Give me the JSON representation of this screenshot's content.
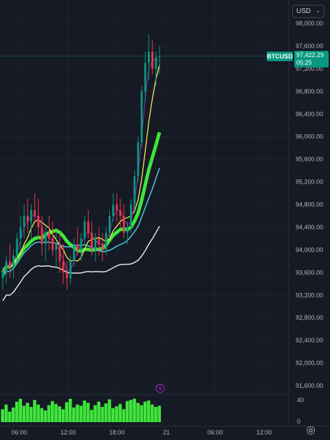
{
  "currency_select": {
    "value": "USD"
  },
  "symbol_tag": {
    "symbol": "BTCUSD",
    "price": "97,422.29",
    "countdown": "05:25"
  },
  "price_axis": [
    "98,000.00",
    "97,600.00",
    "97,200.00",
    "96,800.00",
    "96,400.00",
    "96,000.00",
    "95,600.00",
    "95,200.00",
    "94,800.00",
    "94,400.00",
    "94,000.00",
    "93,600.00",
    "93,200.00",
    "92,800.00",
    "92,400.00",
    "92,000.00",
    "91,600.00"
  ],
  "time_axis": [
    "06:00",
    "12:00",
    "18:00",
    "21",
    "06:00",
    "12:00"
  ],
  "volume_axis": [
    "40",
    "0"
  ],
  "colors": {
    "up": "#089981",
    "down": "#f23645",
    "bg": "#161a25",
    "volume": "#3fe53b",
    "text": "#b2b5be"
  },
  "icons": {
    "settings": "gear-icon",
    "alert": "lightning-icon",
    "dropdown": "chevron-down-icon"
  },
  "chart_data": {
    "type": "candlestick",
    "ylim": [
      91600,
      98000
    ],
    "yticks": [
      98000,
      97600,
      97200,
      96800,
      96400,
      96000,
      95600,
      95200,
      94800,
      94400,
      94000,
      93600,
      93200,
      92800,
      92400,
      92000,
      91600
    ],
    "xticks": [
      "06:00",
      "12:00",
      "18:00",
      "21",
      "06:00",
      "12:00"
    ],
    "last_price": 97422.29,
    "candles": [
      [
        93500,
        93700,
        93300,
        93600
      ],
      [
        93600,
        93900,
        93400,
        93800
      ],
      [
        93800,
        94100,
        93500,
        93700
      ],
      [
        93700,
        94000,
        93500,
        93900
      ],
      [
        93900,
        94300,
        93800,
        94200
      ],
      [
        94200,
        94600,
        94000,
        94400
      ],
      [
        94400,
        94800,
        94200,
        94600
      ],
      [
        94600,
        94900,
        94300,
        94500
      ],
      [
        94500,
        94800,
        94200,
        94700
      ],
      [
        94700,
        95000,
        94500,
        94600
      ],
      [
        94600,
        94900,
        94200,
        94400
      ],
      [
        94400,
        94600,
        93900,
        94100
      ],
      [
        94100,
        94400,
        93800,
        94300
      ],
      [
        94300,
        94600,
        94000,
        94200
      ],
      [
        94200,
        94500,
        93900,
        94000
      ],
      [
        94000,
        94300,
        93700,
        94100
      ],
      [
        94100,
        94300,
        93600,
        93800
      ],
      [
        93800,
        94100,
        93400,
        93600
      ],
      [
        93600,
        93800,
        93300,
        93500
      ],
      [
        93500,
        93900,
        93400,
        93800
      ],
      [
        93800,
        94200,
        93700,
        94100
      ],
      [
        94100,
        94400,
        93900,
        94000
      ],
      [
        94000,
        94300,
        93800,
        94200
      ],
      [
        94200,
        94600,
        94100,
        94500
      ],
      [
        94500,
        94700,
        94200,
        94300
      ],
      [
        94300,
        94500,
        93900,
        94000
      ],
      [
        94000,
        94300,
        93800,
        94200
      ],
      [
        94200,
        94400,
        93900,
        94100
      ],
      [
        94100,
        94300,
        93800,
        94000
      ],
      [
        94000,
        94400,
        93900,
        94300
      ],
      [
        94300,
        94700,
        94200,
        94600
      ],
      [
        94600,
        95000,
        94500,
        94800
      ],
      [
        94800,
        95000,
        94500,
        94700
      ],
      [
        94700,
        94900,
        94400,
        94600
      ],
      [
        94600,
        94800,
        94200,
        94300
      ],
      [
        94300,
        94500,
        94100,
        94400
      ],
      [
        94400,
        94900,
        94300,
        94800
      ],
      [
        94800,
        95400,
        94700,
        95300
      ],
      [
        95300,
        96000,
        95200,
        95900
      ],
      [
        95900,
        96900,
        95800,
        96800
      ],
      [
        96800,
        97500,
        96600,
        97300
      ],
      [
        97300,
        97800,
        97000,
        97500
      ],
      [
        97500,
        97700,
        97100,
        97200
      ],
      [
        97200,
        97500,
        96900,
        97400
      ],
      [
        97400,
        97600,
        97100,
        97422
      ]
    ],
    "volume": [
      22,
      30,
      18,
      25,
      35,
      40,
      28,
      33,
      26,
      38,
      30,
      24,
      20,
      29,
      36,
      31,
      27,
      22,
      34,
      40,
      25,
      30,
      28,
      37,
      33,
      21,
      29,
      35,
      26,
      32,
      39,
      24,
      27,
      31,
      22,
      36,
      38,
      40,
      33,
      29,
      35,
      37,
      30,
      26,
      28
    ]
  }
}
